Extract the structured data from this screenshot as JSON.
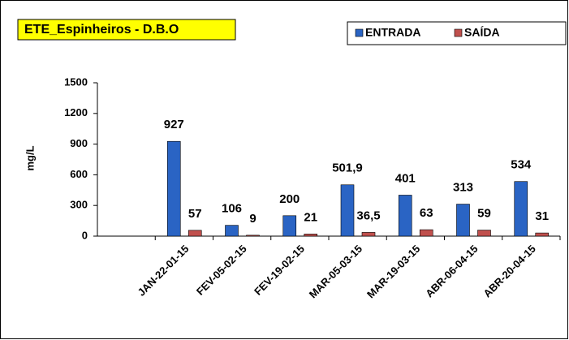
{
  "chart_data": {
    "type": "bar",
    "title": "ETE_Espinheiros  - D.B.O",
    "ylabel": "mg/L",
    "categories": [
      null,
      "JAN-22-01-15",
      "FEV-05-02-15",
      "FEV-19-02-15",
      "MAR-05-03-15",
      "MAR-19-03-15",
      "ABR-06-04-15",
      "ABR-20-04-15"
    ],
    "series": [
      {
        "name": "ENTRADA",
        "color": "#2a64c4",
        "values": [
          null,
          927,
          106,
          200,
          501.9,
          401,
          313,
          534
        ],
        "value_labels": [
          null,
          "927",
          "106",
          "200",
          "501,9",
          "401",
          "313",
          "534"
        ]
      },
      {
        "name": "SAÍDA",
        "color": "#c0504d",
        "values": [
          null,
          57,
          9,
          21,
          36.5,
          63,
          59,
          31
        ],
        "value_labels": [
          null,
          "57",
          "9",
          "21",
          "36,5",
          "63",
          "59",
          "31"
        ]
      }
    ],
    "ylim": [
      0,
      1500
    ],
    "yticks": [
      0,
      300,
      600,
      900,
      1200,
      1500
    ],
    "grid": false,
    "legend": "top-right"
  }
}
